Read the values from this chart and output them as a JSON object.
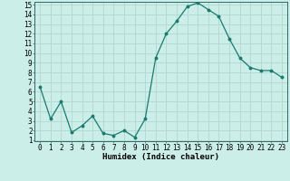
{
  "x": [
    0,
    1,
    2,
    3,
    4,
    5,
    6,
    7,
    8,
    9,
    10,
    11,
    12,
    13,
    14,
    15,
    16,
    17,
    18,
    19,
    20,
    21,
    22,
    23
  ],
  "y": [
    6.5,
    3.2,
    5.0,
    1.8,
    2.5,
    3.5,
    1.7,
    1.5,
    2.0,
    1.3,
    3.2,
    9.5,
    12.0,
    13.3,
    14.8,
    15.2,
    14.5,
    13.8,
    11.5,
    9.5,
    8.5,
    8.2,
    8.2,
    7.5
  ],
  "xlabel": "Humidex (Indice chaleur)",
  "ylim": [
    1,
    15
  ],
  "xlim": [
    -0.5,
    23.5
  ],
  "yticks": [
    1,
    2,
    3,
    4,
    5,
    6,
    7,
    8,
    9,
    10,
    11,
    12,
    13,
    14,
    15
  ],
  "xticks": [
    0,
    1,
    2,
    3,
    4,
    5,
    6,
    7,
    8,
    9,
    10,
    11,
    12,
    13,
    14,
    15,
    16,
    17,
    18,
    19,
    20,
    21,
    22,
    23
  ],
  "line_color": "#1a7a6e",
  "marker_color": "#1a7a6e",
  "bg_color": "#cceee8",
  "grid_color": "#b0d8d0",
  "xlabel_fontsize": 6.5,
  "tick_fontsize": 5.5
}
